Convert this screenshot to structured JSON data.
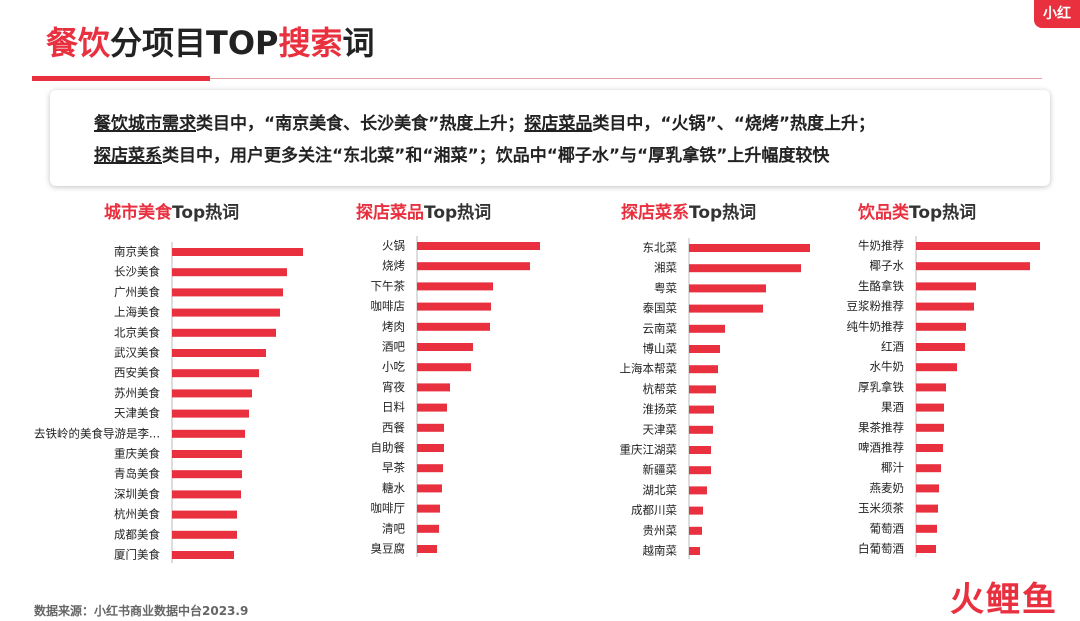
{
  "header": {
    "title_parts": [
      "餐饮",
      "分项目TOP",
      "搜索",
      "词"
    ],
    "badge": "小红"
  },
  "summary": {
    "lines": [
      [
        "餐饮城市需求",
        "类目中，“南京美食、长沙美食”热度上升；",
        "探店菜品",
        "类目中，“火锅”、“烧烤”热度上升；"
      ],
      [
        "探店菜系",
        "类目中，用户更多关注“东北菜”和“湘菜”；饮品中“椰子水”与“厚乳拿铁”上升幅度较快"
      ]
    ]
  },
  "chart_data": [
    {
      "type": "bar",
      "title_parts": [
        "城市美食",
        "Top热词"
      ],
      "color": "#e8303f",
      "xlim": [
        0,
        140
      ],
      "categories": [
        "南京美食",
        "长沙美食",
        "广州美食",
        "上海美食",
        "北京美食",
        "武汉美食",
        "西安美食",
        "苏州美食",
        "天津美食",
        "去铁岭的美食导游是李...",
        "重庆美食",
        "青岛美食",
        "深圳美食",
        "杭州美食",
        "成都美食",
        "厦门美食"
      ],
      "values": [
        131,
        115,
        111,
        108,
        104,
        94,
        87,
        80,
        77,
        73,
        70,
        70,
        69,
        65,
        65,
        62
      ]
    },
    {
      "type": "bar",
      "title_parts": [
        "探店菜品",
        "Top热词"
      ],
      "color": "#e8303f",
      "xlim": [
        0,
        140
      ],
      "categories": [
        "火锅",
        "烧烤",
        "下午茶",
        "咖啡店",
        "烤肉",
        "酒吧",
        "小吃",
        "宵夜",
        "日料",
        "西餐",
        "自助餐",
        "早茶",
        "糖水",
        "咖啡厅",
        "清吧",
        "臭豆腐"
      ],
      "values": [
        123,
        113,
        76,
        74,
        73,
        56,
        54,
        33,
        30,
        27,
        27,
        26,
        25,
        23,
        22,
        20
      ]
    },
    {
      "type": "bar",
      "title_parts": [
        "探店菜系",
        "Top热词"
      ],
      "color": "#e8303f",
      "xlim": [
        0,
        140
      ],
      "categories": [
        "东北菜",
        "湘菜",
        "粤菜",
        "泰国菜",
        "云南菜",
        "博山菜",
        "上海本帮菜",
        "杭帮菜",
        "淮扬菜",
        "天津菜",
        "重庆江湖菜",
        "新疆菜",
        "湖北菜",
        "成都川菜",
        "贵州菜",
        "越南菜"
      ],
      "values": [
        121,
        112,
        77,
        74,
        36,
        31,
        29,
        27,
        25,
        24,
        22,
        22,
        18,
        14,
        13,
        11
      ]
    },
    {
      "type": "bar",
      "title_parts": [
        "饮品类",
        "Top热词"
      ],
      "color": "#e8303f",
      "xlim": [
        0,
        140
      ],
      "categories": [
        "牛奶推荐",
        "椰子水",
        "生酪拿铁",
        "豆浆粉推荐",
        "纯牛奶推荐",
        "红酒",
        "水牛奶",
        "厚乳拿铁",
        "果酒",
        "果茶推荐",
        "啤酒推荐",
        "椰汁",
        "燕麦奶",
        "玉米须茶",
        "葡萄酒",
        "白葡萄酒"
      ],
      "values": [
        124,
        114,
        60,
        58,
        50,
        49,
        41,
        30,
        28,
        28,
        27,
        25,
        23,
        22,
        21,
        20
      ]
    }
  ],
  "footer": {
    "source": "数据来源：小红书商业数据中台2023.9",
    "logo": "火鲤鱼"
  }
}
